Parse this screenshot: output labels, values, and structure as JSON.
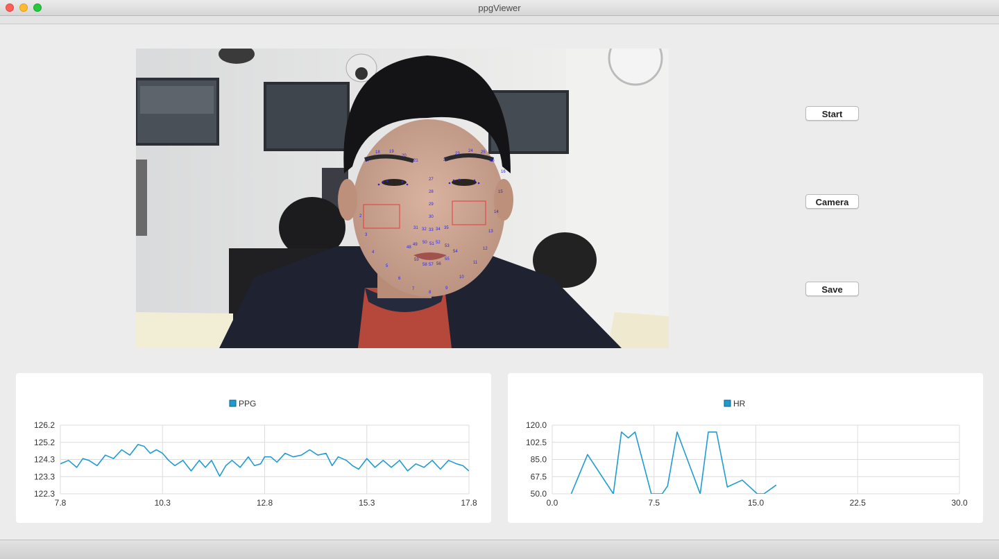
{
  "window": {
    "title": "ppgViewer"
  },
  "controls": {
    "start_label": "Start",
    "camera_label": "Camera",
    "save_label": "Save"
  },
  "video": {
    "landmarks": [
      "17",
      "18",
      "19",
      "20",
      "21",
      "22",
      "23",
      "24",
      "25",
      "26",
      "16",
      "15",
      "14",
      "13",
      "27",
      "28",
      "29",
      "30",
      "31",
      "32",
      "33",
      "34",
      "35",
      "48",
      "49",
      "50",
      "51",
      "52",
      "53",
      "54",
      "55",
      "56",
      "57",
      "58",
      "59",
      "2",
      "3",
      "4",
      "5",
      "6",
      "7",
      "8",
      "9",
      "10",
      "11",
      "12"
    ]
  },
  "colors": {
    "series": "#1f9bd1",
    "roi": "#e23b3b",
    "landmark": "#2a24e8"
  },
  "chart_data": [
    {
      "type": "line",
      "legend": "PPG",
      "xlim": [
        7.8,
        17.8
      ],
      "ylim": [
        122.3,
        126.2
      ],
      "xticks": [
        "7.8",
        "10.3",
        "12.8",
        "15.3",
        "17.8"
      ],
      "yticks": [
        "126.2",
        "125.2",
        "124.3",
        "123.3",
        "122.3"
      ],
      "grid": true,
      "legend_position": "top-center",
      "series": [
        {
          "x": [
            7.8,
            8.0,
            8.2,
            8.35,
            8.5,
            8.7,
            8.9,
            9.1,
            9.3,
            9.5,
            9.7,
            9.85,
            10.0,
            10.15,
            10.3,
            10.45,
            10.6,
            10.8,
            11.0,
            11.2,
            11.35,
            11.5,
            11.7,
            11.85,
            12.0,
            12.2,
            12.4,
            12.55,
            12.7,
            12.8,
            12.95,
            13.1,
            13.3,
            13.5,
            13.7,
            13.9,
            14.1,
            14.3,
            14.45,
            14.6,
            14.8,
            14.95,
            15.1,
            15.3,
            15.5,
            15.7,
            15.9,
            16.1,
            16.3,
            16.5,
            16.7,
            16.9,
            17.1,
            17.3,
            17.5,
            17.65,
            17.8
          ],
          "y": [
            124.0,
            124.2,
            123.8,
            124.3,
            124.2,
            123.9,
            124.5,
            124.3,
            124.8,
            124.5,
            125.1,
            125.0,
            124.6,
            124.8,
            124.6,
            124.2,
            123.9,
            124.2,
            123.6,
            124.2,
            123.8,
            124.2,
            123.3,
            123.9,
            124.2,
            123.8,
            124.4,
            123.9,
            124.0,
            124.4,
            124.4,
            124.1,
            124.6,
            124.4,
            124.5,
            124.8,
            124.5,
            124.6,
            123.9,
            124.4,
            124.2,
            123.9,
            123.7,
            124.3,
            123.8,
            124.2,
            123.8,
            124.2,
            123.6,
            124.0,
            123.8,
            124.2,
            123.7,
            124.2,
            124.0,
            123.9,
            123.6
          ]
        }
      ]
    },
    {
      "type": "line",
      "legend": "HR",
      "xlim": [
        0.0,
        30.0
      ],
      "ylim": [
        50.0,
        120.0
      ],
      "xticks": [
        "0.0",
        "7.5",
        "15.0",
        "22.5",
        "30.0"
      ],
      "yticks": [
        "120.0",
        "102.5",
        "85.0",
        "67.5",
        "50.0"
      ],
      "grid": true,
      "legend_position": "top-center",
      "series": [
        {
          "x": [
            1.4,
            2.6,
            4.5,
            5.1,
            5.6,
            6.1,
            7.3,
            8.1,
            8.5,
            9.2,
            10.9,
            11.5,
            12.1,
            12.9,
            14.0,
            15.1,
            15.6,
            16.5
          ],
          "y": [
            50,
            90,
            50,
            113,
            107,
            113,
            50,
            50,
            58,
            113,
            50,
            113,
            113,
            57,
            64,
            50,
            50,
            59
          ]
        }
      ]
    }
  ]
}
